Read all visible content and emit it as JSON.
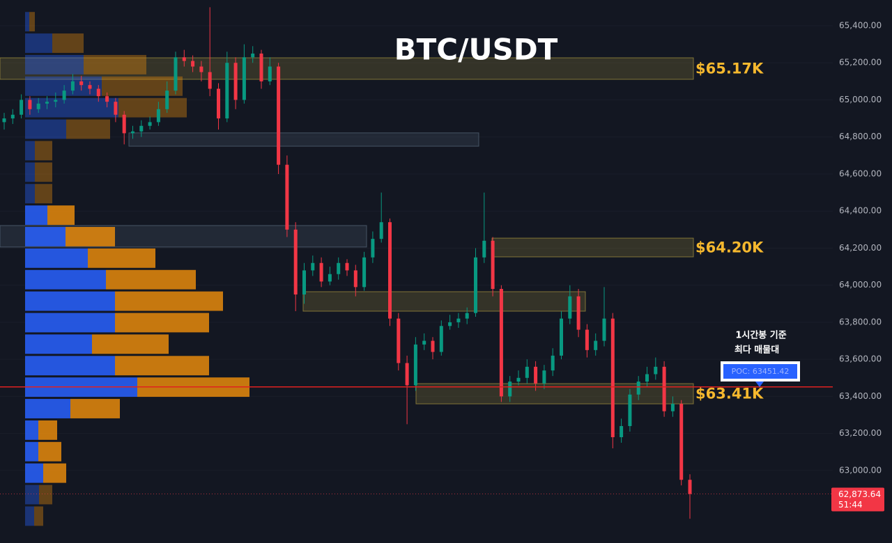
{
  "chart_data": {
    "type": "candlestick",
    "title": "BTC/USDT",
    "ylim": [
      62609,
      65539
    ],
    "yticks": [
      {
        "value": 63000,
        "label": "63,000.00"
      },
      {
        "value": 63200,
        "label": "63,200.00"
      },
      {
        "value": 63400,
        "label": "63,400.00"
      },
      {
        "value": 63600,
        "label": "63,600.00"
      },
      {
        "value": 63800,
        "label": "63,800.00"
      },
      {
        "value": 64000,
        "label": "64,000.00"
      },
      {
        "value": 64200,
        "label": "64,200.00"
      },
      {
        "value": 64400,
        "label": "64,400.00"
      },
      {
        "value": 64600,
        "label": "64,600.00"
      },
      {
        "value": 64800,
        "label": "64,800.00"
      },
      {
        "value": 65000,
        "label": "65,000.00"
      },
      {
        "value": 65200,
        "label": "65,200.00"
      },
      {
        "value": 65400,
        "label": "65,400.00"
      }
    ],
    "up_color": "#089981",
    "down_color": "#f23645",
    "ohlc": [
      [
        64880,
        64930,
        64840,
        64900
      ],
      [
        64900,
        64950,
        64870,
        64920
      ],
      [
        64920,
        65030,
        64900,
        65000
      ],
      [
        65000,
        65020,
        64920,
        64950
      ],
      [
        64950,
        65010,
        64930,
        64980
      ],
      [
        64980,
        65020,
        64950,
        64990
      ],
      [
        64990,
        65040,
        64960,
        65000
      ],
      [
        65000,
        65080,
        64980,
        65050
      ],
      [
        65050,
        65140,
        65030,
        65100
      ],
      [
        65100,
        65130,
        65050,
        65080
      ],
      [
        65080,
        65100,
        65030,
        65060
      ],
      [
        65060,
        65080,
        64990,
        65020
      ],
      [
        65020,
        65040,
        64960,
        64990
      ],
      [
        64990,
        65010,
        64880,
        64920
      ],
      [
        64920,
        64940,
        64760,
        64820
      ],
      [
        64820,
        64860,
        64790,
        64830
      ],
      [
        64830,
        64890,
        64800,
        64860
      ],
      [
        64860,
        64910,
        64840,
        64880
      ],
      [
        64880,
        64990,
        64860,
        64950
      ],
      [
        64950,
        65100,
        64930,
        65050
      ],
      [
        65050,
        65260,
        65030,
        65230
      ],
      [
        65230,
        65270,
        65180,
        65210
      ],
      [
        65210,
        65240,
        65150,
        65180
      ],
      [
        65180,
        65210,
        65100,
        65150
      ],
      [
        65150,
        65500,
        65020,
        65060
      ],
      [
        65060,
        65090,
        64840,
        64900
      ],
      [
        64900,
        65260,
        64880,
        65200
      ],
      [
        65200,
        65230,
        64950,
        65000
      ],
      [
        65000,
        65300,
        64980,
        65230
      ],
      [
        65230,
        65290,
        65200,
        65250
      ],
      [
        65250,
        65270,
        65060,
        65100
      ],
      [
        65100,
        65230,
        65080,
        65180
      ],
      [
        65180,
        65200,
        64600,
        64650
      ],
      [
        64650,
        64700,
        64260,
        64300
      ],
      [
        64300,
        64340,
        63860,
        63950
      ],
      [
        63950,
        64120,
        63900,
        64080
      ],
      [
        64080,
        64160,
        64050,
        64120
      ],
      [
        64120,
        64150,
        63990,
        64020
      ],
      [
        64020,
        64100,
        64000,
        64060
      ],
      [
        64060,
        64150,
        64030,
        64120
      ],
      [
        64120,
        64140,
        64050,
        64080
      ],
      [
        64080,
        64110,
        63940,
        63990
      ],
      [
        63990,
        64180,
        63970,
        64150
      ],
      [
        64150,
        64290,
        64120,
        64250
      ],
      [
        64250,
        64500,
        64230,
        64340
      ],
      [
        64340,
        64360,
        63780,
        63820
      ],
      [
        63820,
        63850,
        63540,
        63580
      ],
      [
        63580,
        63620,
        63250,
        63460
      ],
      [
        63460,
        63720,
        63430,
        63680
      ],
      [
        63680,
        63740,
        63650,
        63700
      ],
      [
        63700,
        63720,
        63600,
        63640
      ],
      [
        63640,
        63810,
        63620,
        63780
      ],
      [
        63780,
        63840,
        63760,
        63800
      ],
      [
        63800,
        63850,
        63770,
        63820
      ],
      [
        63820,
        63880,
        63790,
        63850
      ],
      [
        63850,
        64200,
        63830,
        64150
      ],
      [
        64150,
        64500,
        64120,
        64240
      ],
      [
        64240,
        64260,
        63940,
        63980
      ],
      [
        63980,
        64000,
        63370,
        63400
      ],
      [
        63400,
        63510,
        63370,
        63480
      ],
      [
        63480,
        63540,
        63460,
        63500
      ],
      [
        63500,
        63600,
        63470,
        63560
      ],
      [
        63560,
        63590,
        63430,
        63470
      ],
      [
        63470,
        63570,
        63440,
        63540
      ],
      [
        63540,
        63660,
        63510,
        63620
      ],
      [
        63620,
        63860,
        63600,
        63820
      ],
      [
        63820,
        64000,
        63790,
        63940
      ],
      [
        63940,
        63980,
        63720,
        63760
      ],
      [
        63760,
        63790,
        63610,
        63650
      ],
      [
        63650,
        63740,
        63620,
        63700
      ],
      [
        63700,
        63990,
        63670,
        63820
      ],
      [
        63820,
        63850,
        63120,
        63180
      ],
      [
        63180,
        63280,
        63150,
        63240
      ],
      [
        63240,
        63440,
        63210,
        63410
      ],
      [
        63410,
        63510,
        63380,
        63480
      ],
      [
        63480,
        63560,
        63450,
        63520
      ],
      [
        63520,
        63610,
        63490,
        63560
      ],
      [
        63560,
        63590,
        63290,
        63320
      ],
      [
        63320,
        63400,
        63290,
        63360
      ],
      [
        63360,
        63380,
        62920,
        62950
      ],
      [
        62950,
        62980,
        62740,
        62873.64
      ]
    ],
    "volume_profile": {
      "bins": [
        65480,
        65364,
        65248,
        65132,
        65016,
        64900,
        64784,
        64668,
        64552,
        64436,
        64320,
        64204,
        64088,
        63972,
        63856,
        63740,
        63624,
        63508,
        63392,
        63276,
        63160,
        63044,
        62928,
        62812,
        62696
      ],
      "buy": [
        6,
        39,
        84,
        110,
        134,
        59,
        14,
        14,
        14,
        32,
        58,
        90,
        116,
        129,
        129,
        96,
        129,
        161,
        65,
        19,
        19,
        26,
        20,
        13
      ],
      "sell": [
        8,
        45,
        90,
        116,
        98,
        63,
        25,
        25,
        25,
        39,
        71,
        97,
        129,
        155,
        135,
        110,
        135,
        161,
        71,
        27,
        33,
        33,
        19,
        13
      ],
      "buy_color": "#2962ff",
      "sell_color": "#e68a0c",
      "value_area": [
        62928,
        64436
      ]
    },
    "zones": [
      {
        "low": 65111,
        "high": 65227,
        "label": "$65.17K",
        "color": "#8c7d3a"
      },
      {
        "low": 64750,
        "high": 64822,
        "color": "#4b5a6a"
      },
      {
        "low": 64206,
        "high": 64322,
        "color": "#4b5a6a"
      },
      {
        "low": 64153,
        "high": 64254,
        "label": "$64.20K",
        "color": "#8c7d3a"
      },
      {
        "low": 63860,
        "high": 63965,
        "color": "#8c7d3a"
      },
      {
        "low": 63360,
        "high": 63469,
        "label": "$63.41K",
        "color": "#8c7d3a"
      }
    ],
    "poc": {
      "value": 63451.42,
      "label": "POC: 63451.42",
      "note": [
        "1시간봉 기준",
        "최다 매물대"
      ]
    },
    "last_price": {
      "value": 62873.64,
      "label": "62,873.64",
      "countdown": "51:44"
    }
  }
}
